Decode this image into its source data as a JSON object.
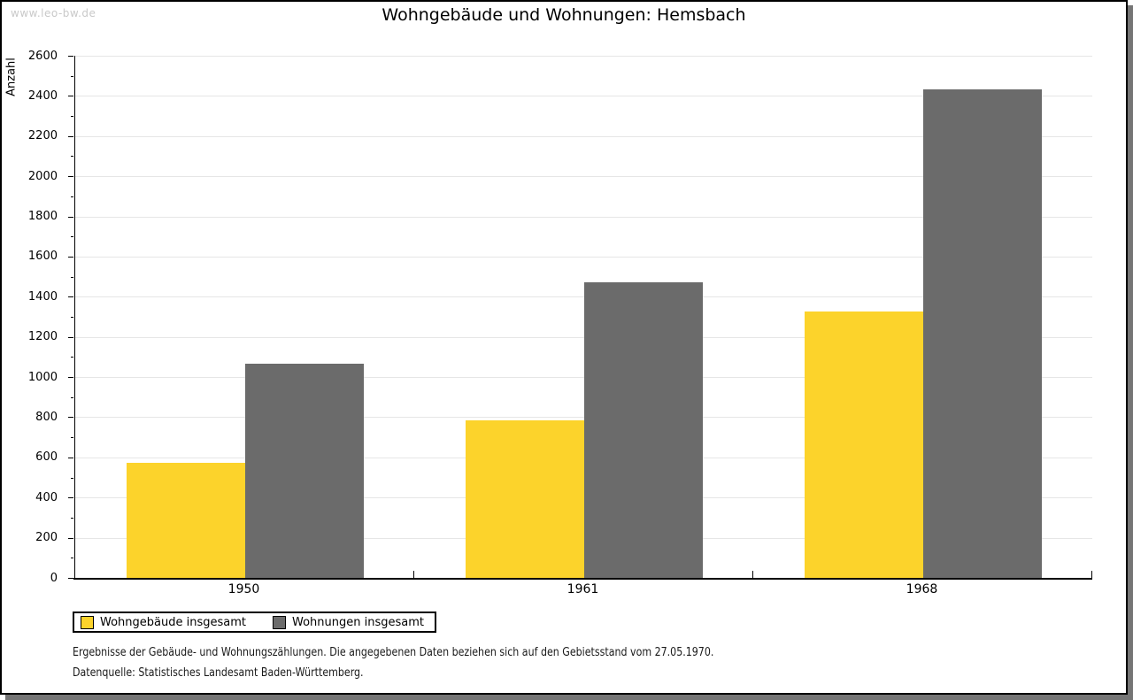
{
  "watermark": "www.leo-bw.de",
  "title": "Wohngebäude und Wohnungen: Hemsbach",
  "chart_data": {
    "type": "bar",
    "title": "Wohngebäude und Wohnungen: Hemsbach",
    "categories": [
      "1950",
      "1961",
      "1968"
    ],
    "series": [
      {
        "name": "Wohngebäude insgesamt",
        "color": "#FCD32B",
        "values": [
          573,
          785,
          1326
        ]
      },
      {
        "name": "Wohnungen insgesamt",
        "color": "#6B6B6B",
        "values": [
          1068,
          1474,
          2431
        ]
      }
    ],
    "xlabel": "",
    "ylabel": "Anzahl",
    "ylim": [
      0,
      2600
    ],
    "ytick_step": 200,
    "ytick_minor_step": 100,
    "grid": "horizontal-major",
    "gridline_color": "#e6e6e6",
    "legend_position": "bottom-left"
  },
  "footer": {
    "line1": "Ergebnisse der Gebäude- und Wohnungszählungen. Die angegebenen Daten beziehen sich auf den Gebietsstand vom 27.05.1970.",
    "line2": "Datenquelle: Statistisches Landesamt Baden-Württemberg."
  }
}
